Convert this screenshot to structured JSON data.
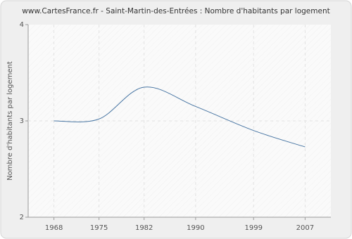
{
  "chart_data": {
    "type": "line",
    "title": "www.CartesFrance.fr - Saint-Martin-des-Entrées : Nombre d'habitants par logement",
    "y_label": "Nombre d'habitants par logement",
    "x": [
      1968,
      1975,
      1982,
      1990,
      1999,
      2007
    ],
    "series": [
      {
        "name": "Nombre d'habitants par logement",
        "color": "#4a77a4",
        "values": [
          3.0,
          3.02,
          3.35,
          3.15,
          2.9,
          2.73
        ]
      }
    ],
    "xlim": [
      1964,
      2011
    ],
    "xticks": [
      1968,
      1975,
      1982,
      1990,
      1999,
      2007
    ],
    "ylim": [
      2,
      4
    ],
    "yticks": [
      2,
      3,
      4
    ],
    "grid": true
  }
}
